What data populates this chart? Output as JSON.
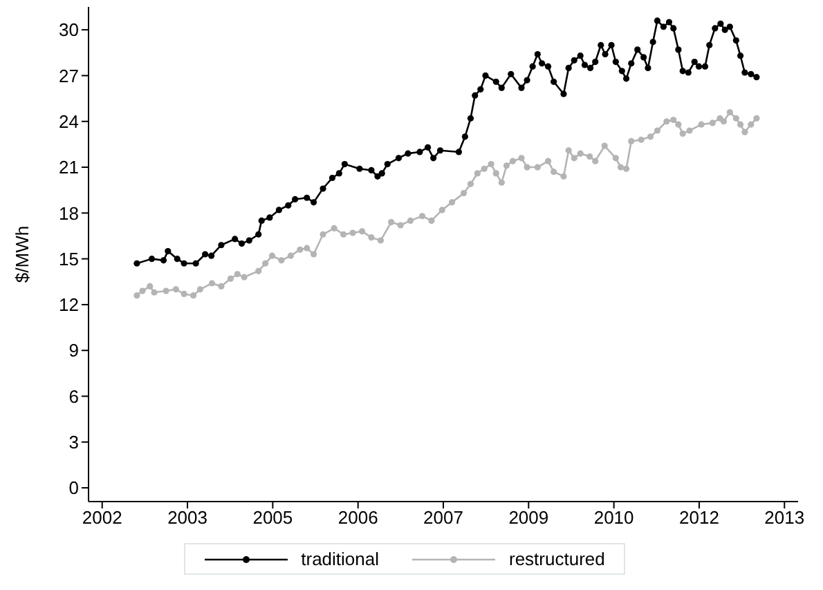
{
  "chart_data": {
    "type": "line",
    "ylabel": "$/MWh",
    "xlim": [
      2001.78,
      2013.22
    ],
    "xticks": [
      2002,
      {
        "value": 2003.375,
        "label": "2003"
      },
      {
        "value": 2004.75,
        "label": "2005"
      },
      {
        "value": 2006.125,
        "label": "2006"
      },
      {
        "value": 2007.5,
        "label": "2007"
      },
      {
        "value": 2008.875,
        "label": "2009"
      },
      {
        "value": 2010.25,
        "label": "2010"
      },
      {
        "value": 2011.625,
        "label": "2012"
      },
      2013
    ],
    "ylim": [
      -0.9,
      31.5
    ],
    "yticks": [
      0,
      3,
      6,
      9,
      12,
      15,
      18,
      21,
      24,
      27,
      30
    ],
    "grid": false,
    "legend": "bottom",
    "marker": "circle",
    "line_style": "solid",
    "series": [
      {
        "name": "traditional",
        "color": "#000000",
        "x": [
          2002.56,
          2002.8,
          2002.99,
          2003.06,
          2003.21,
          2003.32,
          2003.51,
          2003.66,
          2003.76,
          2003.92,
          2004.14,
          2004.25,
          2004.37,
          2004.52,
          2004.57,
          2004.7,
          2004.85,
          2005.0,
          2005.11,
          2005.3,
          2005.41,
          2005.56,
          2005.71,
          2005.82,
          2005.91,
          2006.15,
          2006.34,
          2006.44,
          2006.51,
          2006.6,
          2006.78,
          2006.93,
          2007.12,
          2007.25,
          2007.34,
          2007.45,
          2007.75,
          2007.85,
          2007.94,
          2008.01,
          2008.1,
          2008.18,
          2008.35,
          2008.44,
          2008.59,
          2008.76,
          2008.85,
          2008.94,
          2009.02,
          2009.09,
          2009.19,
          2009.28,
          2009.44,
          2009.52,
          2009.61,
          2009.71,
          2009.78,
          2009.87,
          2009.95,
          2010.04,
          2010.11,
          2010.21,
          2010.28,
          2010.38,
          2010.45,
          2010.53,
          2010.63,
          2010.73,
          2010.8,
          2010.88,
          2010.95,
          2011.05,
          2011.14,
          2011.21,
          2011.29,
          2011.36,
          2011.45,
          2011.55,
          2011.62,
          2011.72,
          2011.79,
          2011.88,
          2011.97,
          2012.04,
          2012.12,
          2012.22,
          2012.29,
          2012.36,
          2012.46,
          2012.55
        ],
        "values": [
          14.7,
          15.0,
          14.9,
          15.5,
          15.0,
          14.7,
          14.7,
          15.3,
          15.2,
          15.9,
          16.3,
          16.0,
          16.2,
          16.6,
          17.5,
          17.7,
          18.2,
          18.5,
          18.9,
          19.0,
          18.7,
          19.6,
          20.3,
          20.6,
          21.2,
          20.9,
          20.8,
          20.4,
          20.6,
          21.2,
          21.6,
          21.9,
          22.0,
          22.3,
          21.6,
          22.1,
          22.0,
          23.0,
          24.2,
          25.7,
          26.1,
          27.0,
          26.6,
          26.2,
          27.1,
          26.2,
          26.7,
          27.6,
          28.4,
          27.8,
          27.6,
          26.6,
          25.8,
          27.5,
          28.0,
          28.3,
          27.7,
          27.5,
          27.9,
          29.0,
          28.4,
          29.0,
          27.9,
          27.3,
          26.8,
          27.8,
          28.7,
          28.2,
          27.5,
          29.2,
          30.6,
          30.2,
          30.5,
          30.1,
          28.7,
          27.3,
          27.2,
          27.9,
          27.6,
          27.6,
          29.0,
          30.1,
          30.4,
          30.0,
          30.2,
          29.3,
          28.3,
          27.2,
          27.1,
          26.9
        ]
      },
      {
        "name": "restructured",
        "color": "#b4b4b4",
        "x": [
          2002.56,
          2002.65,
          2002.77,
          2002.84,
          2003.03,
          2003.19,
          2003.32,
          2003.47,
          2003.58,
          2003.77,
          2003.92,
          2004.07,
          2004.18,
          2004.29,
          2004.52,
          2004.63,
          2004.74,
          2004.89,
          2005.04,
          2005.19,
          2005.3,
          2005.41,
          2005.56,
          2005.74,
          2005.89,
          2006.04,
          2006.19,
          2006.34,
          2006.49,
          2006.66,
          2006.81,
          2006.97,
          2007.16,
          2007.31,
          2007.48,
          2007.64,
          2007.83,
          2007.94,
          2008.05,
          2008.16,
          2008.27,
          2008.35,
          2008.44,
          2008.52,
          2008.62,
          2008.76,
          2008.85,
          2009.02,
          2009.19,
          2009.28,
          2009.44,
          2009.52,
          2009.61,
          2009.71,
          2009.86,
          2009.95,
          2010.1,
          2010.28,
          2010.36,
          2010.45,
          2010.53,
          2010.69,
          2010.84,
          2010.95,
          2011.1,
          2011.21,
          2011.29,
          2011.36,
          2011.47,
          2011.66,
          2011.84,
          2011.96,
          2012.02,
          2012.12,
          2012.22,
          2012.29,
          2012.36,
          2012.46,
          2012.55
        ],
        "values": [
          12.6,
          12.9,
          13.2,
          12.8,
          12.9,
          13.0,
          12.7,
          12.6,
          13.0,
          13.4,
          13.2,
          13.7,
          14.0,
          13.8,
          14.2,
          14.7,
          15.2,
          14.9,
          15.2,
          15.6,
          15.7,
          15.3,
          16.6,
          17.0,
          16.6,
          16.7,
          16.8,
          16.4,
          16.2,
          17.4,
          17.2,
          17.5,
          17.8,
          17.5,
          18.2,
          18.7,
          19.3,
          19.9,
          20.6,
          20.9,
          21.2,
          20.6,
          20.0,
          21.1,
          21.4,
          21.6,
          21.0,
          21.0,
          21.4,
          20.7,
          20.4,
          22.1,
          21.6,
          21.9,
          21.7,
          21.4,
          22.4,
          21.6,
          21.0,
          20.9,
          22.7,
          22.8,
          23.0,
          23.4,
          24.0,
          24.1,
          23.8,
          23.2,
          23.4,
          23.8,
          23.9,
          24.2,
          24.0,
          24.6,
          24.2,
          23.8,
          23.3,
          23.8,
          24.2
        ]
      }
    ]
  }
}
